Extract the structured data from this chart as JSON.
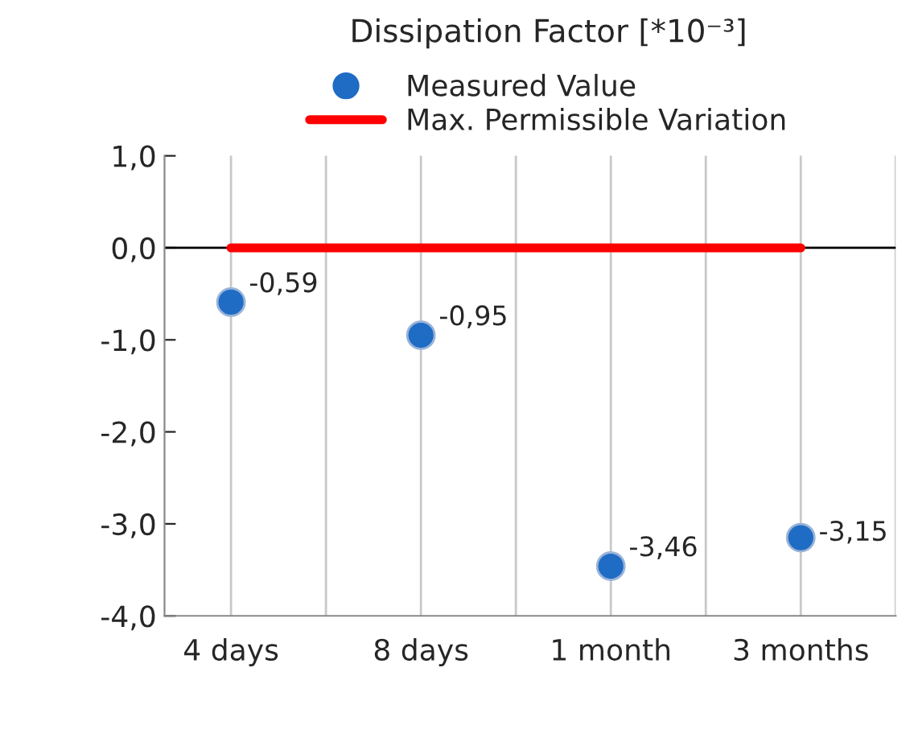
{
  "chart_data": {
    "type": "scatter",
    "title": "Dissipation Factor [*10⁻³]",
    "categories": [
      "4 days",
      "8 days",
      "1 month",
      "3 months"
    ],
    "series": [
      {
        "name": "Measured Value",
        "color": "#1f6cc4",
        "marker": "circle",
        "values": [
          -0.59,
          -0.95,
          -3.46,
          -3.15
        ],
        "value_labels": [
          "-0,59",
          "-0,95",
          "-3,46",
          "-3,15"
        ]
      },
      {
        "name": "Max. Permissible Variation",
        "type": "line",
        "color": "#ff0000",
        "marker": "none",
        "line_style": "solid",
        "values": [
          0,
          0,
          0,
          0
        ]
      }
    ],
    "ylim": [
      -4,
      1
    ],
    "yticks": [
      {
        "value": 1,
        "label": "1,0"
      },
      {
        "value": 0,
        "label": "0,0"
      },
      {
        "value": -1,
        "label": "-1,0"
      },
      {
        "value": -2,
        "label": "-2,0"
      },
      {
        "value": -3,
        "label": "-3,0"
      },
      {
        "value": -4,
        "label": "-4,0"
      }
    ],
    "ref_lines": [
      {
        "axis": "y",
        "value": 0,
        "color": "#000000"
      }
    ],
    "grid": "x",
    "legend": "top"
  }
}
